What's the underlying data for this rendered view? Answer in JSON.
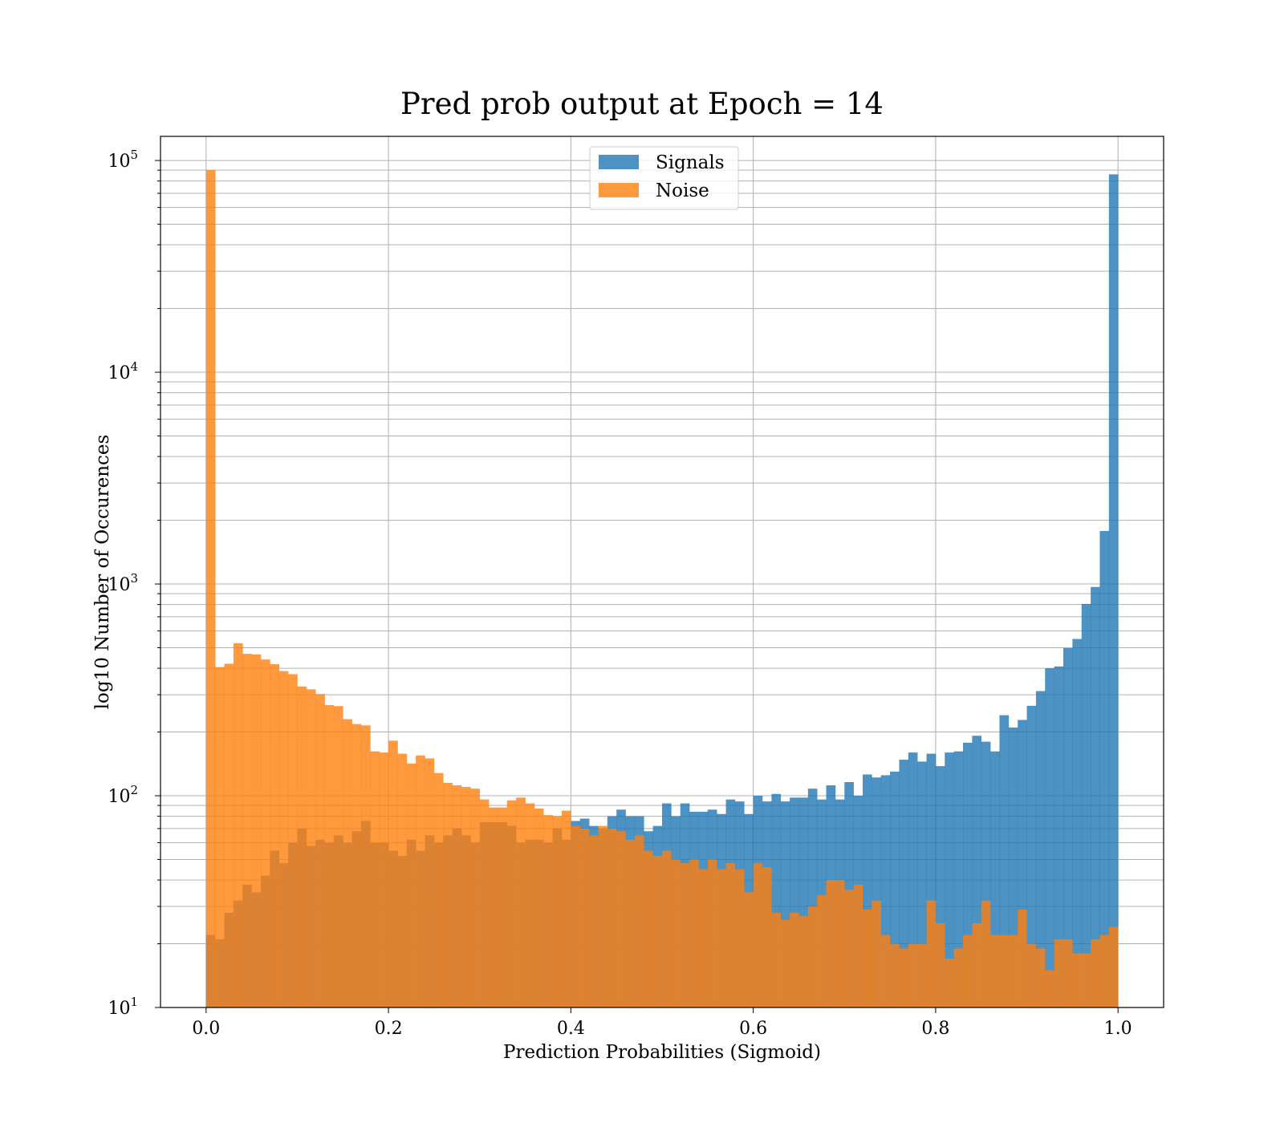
{
  "chart_data": {
    "type": "histogram",
    "title": "Pred prob output at Epoch = 14",
    "xlabel": "Prediction Probabilities (Sigmoid)",
    "ylabel": "log10 Number of Occurences",
    "x_ticks": [
      "0.0",
      "0.2",
      "0.4",
      "0.6",
      "0.8",
      "1.0"
    ],
    "x_tick_values": [
      0.0,
      0.2,
      0.4,
      0.6,
      0.8,
      1.0
    ],
    "y_ticks": [
      {
        "base": "10",
        "exp": "1",
        "value": 10
      },
      {
        "base": "10",
        "exp": "2",
        "value": 100
      },
      {
        "base": "10",
        "exp": "3",
        "value": 1000
      },
      {
        "base": "10",
        "exp": "4",
        "value": 10000
      },
      {
        "base": "10",
        "exp": "5",
        "value": 100000
      }
    ],
    "xlim": [
      -0.05,
      1.05
    ],
    "ylim": [
      10,
      130000
    ],
    "yscale": "log",
    "grid": true,
    "legend_position": "top-center",
    "bins": 100,
    "bin_range": [
      0.0,
      1.0
    ],
    "colors": {
      "Signals": "#1f77b4",
      "Noise": "#ff7f0e"
    },
    "opacity": 0.8,
    "series": [
      {
        "name": "Signals",
        "values": [
          22,
          21,
          28,
          32,
          38,
          35,
          42,
          55,
          48,
          60,
          70,
          58,
          62,
          60,
          65,
          60,
          68,
          76,
          60,
          60,
          55,
          52,
          62,
          55,
          65,
          60,
          65,
          70,
          65,
          60,
          75,
          75,
          75,
          72,
          60,
          62,
          62,
          60,
          70,
          62,
          76,
          78,
          72,
          70,
          80,
          86,
          80,
          80,
          68,
          72,
          92,
          80,
          92,
          84,
          84,
          86,
          82,
          96,
          94,
          82,
          100,
          94,
          102,
          94,
          98,
          98,
          108,
          96,
          112,
          96,
          116,
          100,
          126,
          122,
          125,
          130,
          148,
          160,
          145,
          158,
          138,
          160,
          162,
          178,
          192,
          180,
          162,
          240,
          210,
          228,
          266,
          312,
          400,
          408,
          498,
          550,
          805,
          968,
          1780,
          86000
        ]
      },
      {
        "name": "Noise",
        "values": [
          90000,
          405,
          420,
          525,
          468,
          465,
          440,
          418,
          388,
          375,
          328,
          318,
          302,
          268,
          265,
          230,
          218,
          215,
          162,
          160,
          182,
          158,
          142,
          155,
          150,
          128,
          115,
          112,
          110,
          108,
          96,
          88,
          88,
          95,
          98,
          92,
          87,
          81,
          80,
          85,
          72,
          70,
          65,
          72,
          70,
          68,
          62,
          65,
          55,
          52,
          55,
          50,
          48,
          50,
          45,
          50,
          45,
          48,
          45,
          35,
          48,
          46,
          28,
          26,
          28,
          27,
          30,
          34,
          40,
          40,
          36,
          38,
          29,
          32,
          22,
          20,
          19,
          20,
          20,
          32,
          25,
          17,
          19,
          22,
          25,
          32,
          22,
          22,
          22,
          29,
          20,
          19,
          15,
          21,
          21,
          18,
          18,
          21,
          22,
          24
        ]
      }
    ]
  }
}
